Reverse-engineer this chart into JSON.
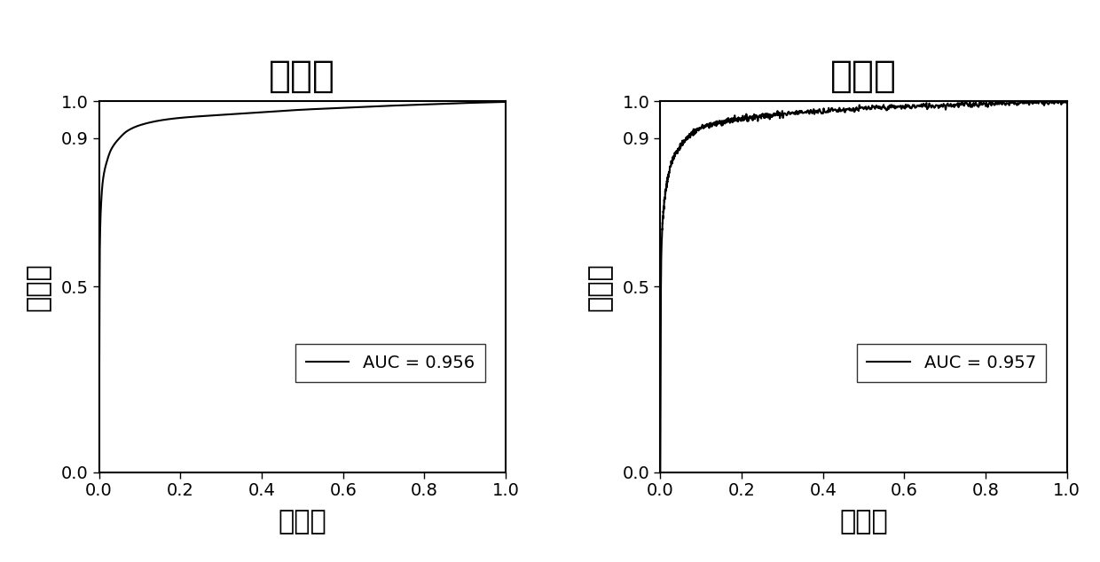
{
  "panel1_title": "训练集",
  "panel2_title": "验证集",
  "xlabel": "特异性",
  "ylabel": "敏感性",
  "auc1": 0.956,
  "auc2": 0.957,
  "xlim": [
    0.0,
    1.0
  ],
  "ylim": [
    0.0,
    1.0
  ],
  "xticks": [
    0.0,
    0.2,
    0.4,
    0.6,
    0.8,
    1.0
  ],
  "yticks": [
    0.0,
    0.5,
    0.9,
    1.0
  ],
  "ytick_labels": [
    "0.0",
    "0.5",
    "0.9",
    "1.0"
  ],
  "xtick_labels": [
    "0.0",
    "0.2",
    "0.4",
    "0.6",
    "0.8",
    "1.0"
  ],
  "line_color": "#000000",
  "line_width": 1.5,
  "background_color": "#ffffff",
  "title_fontsize": 30,
  "label_fontsize": 22,
  "tick_fontsize": 14,
  "legend_fontsize": 14
}
